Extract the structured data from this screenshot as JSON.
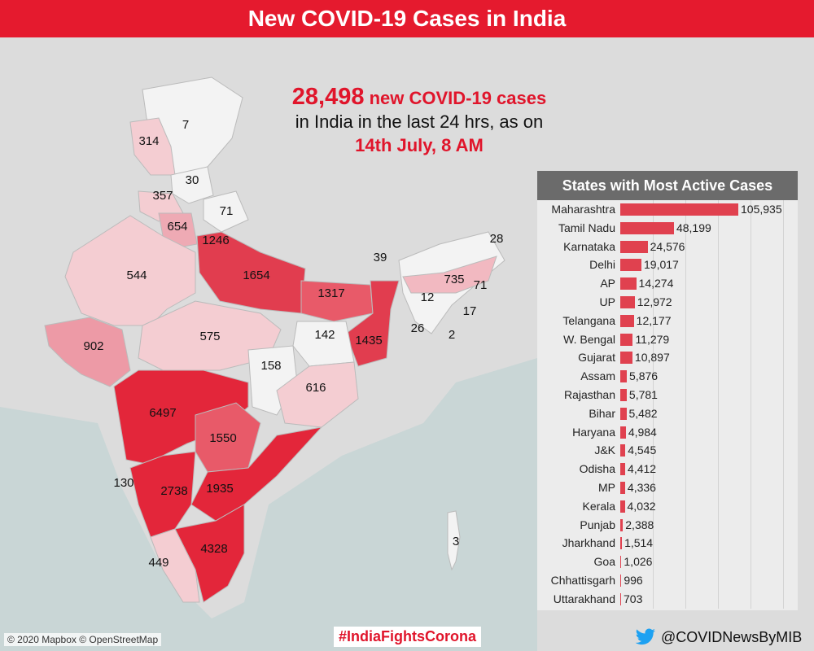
{
  "header": {
    "title": "New COVID-19 Cases in India"
  },
  "headline": {
    "count": "28,498",
    "count_suffix": "new COVID-19 cases",
    "line2": "in India in the last 24 hrs, as on",
    "date": "14th July, 8 AM"
  },
  "colors": {
    "accent": "#e51a2e",
    "bar": "#e0414f",
    "panel_header": "#6b6b6b"
  },
  "map_labels": [
    "7",
    "314",
    "30",
    "357",
    "71",
    "654",
    "1246",
    "544",
    "1654",
    "39",
    "28",
    "735",
    "71",
    "1317",
    "12",
    "17",
    "902",
    "575",
    "142",
    "1435",
    "26",
    "2",
    "158",
    "616",
    "6497",
    "1550",
    "130",
    "2738",
    "1935",
    "3",
    "4328",
    "449"
  ],
  "panel": {
    "title": "States with Most Active Cases",
    "max": 105935,
    "states": [
      {
        "name": "Maharashtra",
        "value": 105935,
        "label": "105,935"
      },
      {
        "name": "Tamil Nadu",
        "value": 48199,
        "label": "48,199"
      },
      {
        "name": "Karnataka",
        "value": 24576,
        "label": "24,576"
      },
      {
        "name": "Delhi",
        "value": 19017,
        "label": "19,017"
      },
      {
        "name": "AP",
        "value": 14274,
        "label": "14,274"
      },
      {
        "name": "UP",
        "value": 12972,
        "label": "12,972"
      },
      {
        "name": "Telangana",
        "value": 12177,
        "label": "12,177"
      },
      {
        "name": "W. Bengal",
        "value": 11279,
        "label": "11,279"
      },
      {
        "name": "Gujarat",
        "value": 10897,
        "label": "10,897"
      },
      {
        "name": "Assam",
        "value": 5876,
        "label": "5,876"
      },
      {
        "name": "Rajasthan",
        "value": 5781,
        "label": "5,781"
      },
      {
        "name": "Bihar",
        "value": 5482,
        "label": "5,482"
      },
      {
        "name": "Haryana",
        "value": 4984,
        "label": "4,984"
      },
      {
        "name": "J&K",
        "value": 4545,
        "label": "4,545"
      },
      {
        "name": "Odisha",
        "value": 4412,
        "label": "4,412"
      },
      {
        "name": "MP",
        "value": 4336,
        "label": "4,336"
      },
      {
        "name": "Kerala",
        "value": 4032,
        "label": "4,032"
      },
      {
        "name": "Punjab",
        "value": 2388,
        "label": "2,388"
      },
      {
        "name": "Jharkhand",
        "value": 1514,
        "label": "1,514"
      },
      {
        "name": "Goa",
        "value": 1026,
        "label": "1,026"
      },
      {
        "name": "Chhattisgarh",
        "value": 996,
        "label": "996"
      },
      {
        "name": "Uttarakhand",
        "value": 703,
        "label": "703"
      }
    ]
  },
  "footer": {
    "attribution": "© 2020 Mapbox © OpenStreetMap",
    "hashtag": "#IndiaFightsCorona",
    "handle": "@COVIDNewsByMIB"
  }
}
